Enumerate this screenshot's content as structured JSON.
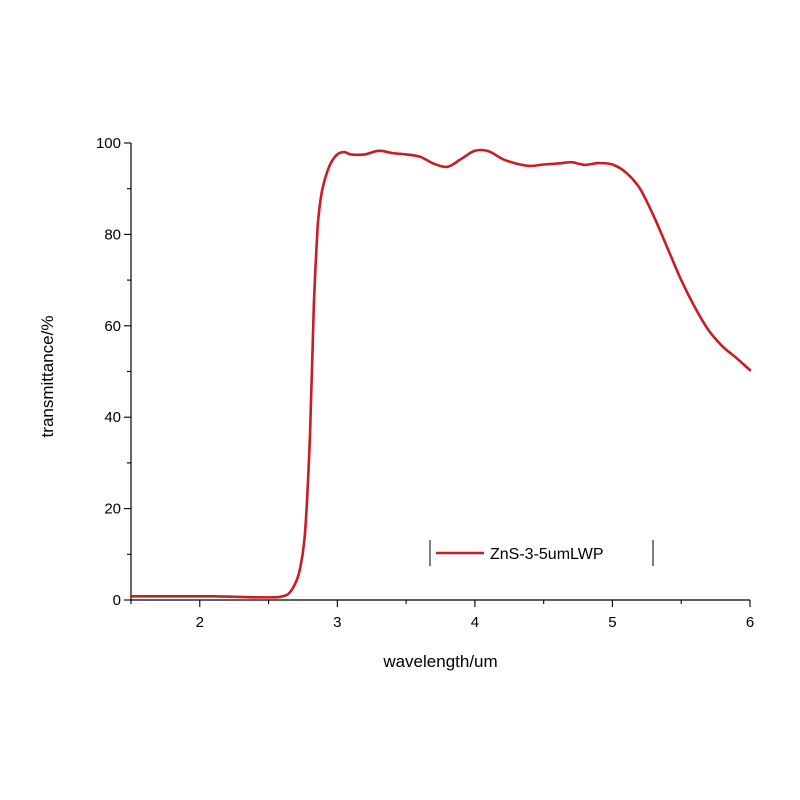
{
  "chart_data": {
    "type": "line",
    "xlabel": "wavelength/um",
    "ylabel": "transmittance/%",
    "xlim": [
      1.5,
      6
    ],
    "ylim": [
      0,
      100
    ],
    "x_ticks": [
      2,
      3,
      4,
      5,
      6
    ],
    "y_ticks": [
      0,
      20,
      40,
      60,
      80,
      100
    ],
    "grid": false,
    "legend_position": "bottom-right",
    "series": [
      {
        "name": "ZnS-3-5umLWP",
        "color": "#cc1b22",
        "x": [
          1.5,
          1.8,
          2.1,
          2.4,
          2.55,
          2.6,
          2.65,
          2.7,
          2.73,
          2.76,
          2.78,
          2.8,
          2.81,
          2.82,
          2.83,
          2.84,
          2.85,
          2.86,
          2.88,
          2.9,
          2.93,
          2.96,
          3.0,
          3.05,
          3.1,
          3.2,
          3.3,
          3.4,
          3.5,
          3.6,
          3.7,
          3.8,
          3.9,
          4.0,
          4.1,
          4.2,
          4.3,
          4.4,
          4.5,
          4.6,
          4.7,
          4.75,
          4.8,
          4.85,
          4.9,
          5.0,
          5.1,
          5.2,
          5.3,
          5.4,
          5.5,
          5.6,
          5.7,
          5.8,
          5.9,
          6.0
        ],
        "y": [
          0.8,
          0.8,
          0.8,
          0.6,
          0.6,
          0.8,
          1.5,
          4.0,
          7.0,
          13.0,
          22.0,
          35.0,
          45.0,
          55.0,
          65.0,
          72.0,
          78.0,
          83.0,
          88.0,
          91.0,
          94.0,
          96.0,
          97.5,
          98.0,
          97.5,
          97.5,
          98.3,
          97.8,
          97.5,
          97.0,
          95.5,
          94.8,
          96.5,
          98.3,
          98.2,
          96.5,
          95.5,
          95.0,
          95.3,
          95.5,
          95.8,
          95.5,
          95.2,
          95.4,
          95.6,
          95.3,
          93.5,
          90.0,
          84.0,
          77.0,
          70.0,
          64.0,
          59.0,
          55.5,
          53.0,
          50.3
        ]
      }
    ]
  }
}
